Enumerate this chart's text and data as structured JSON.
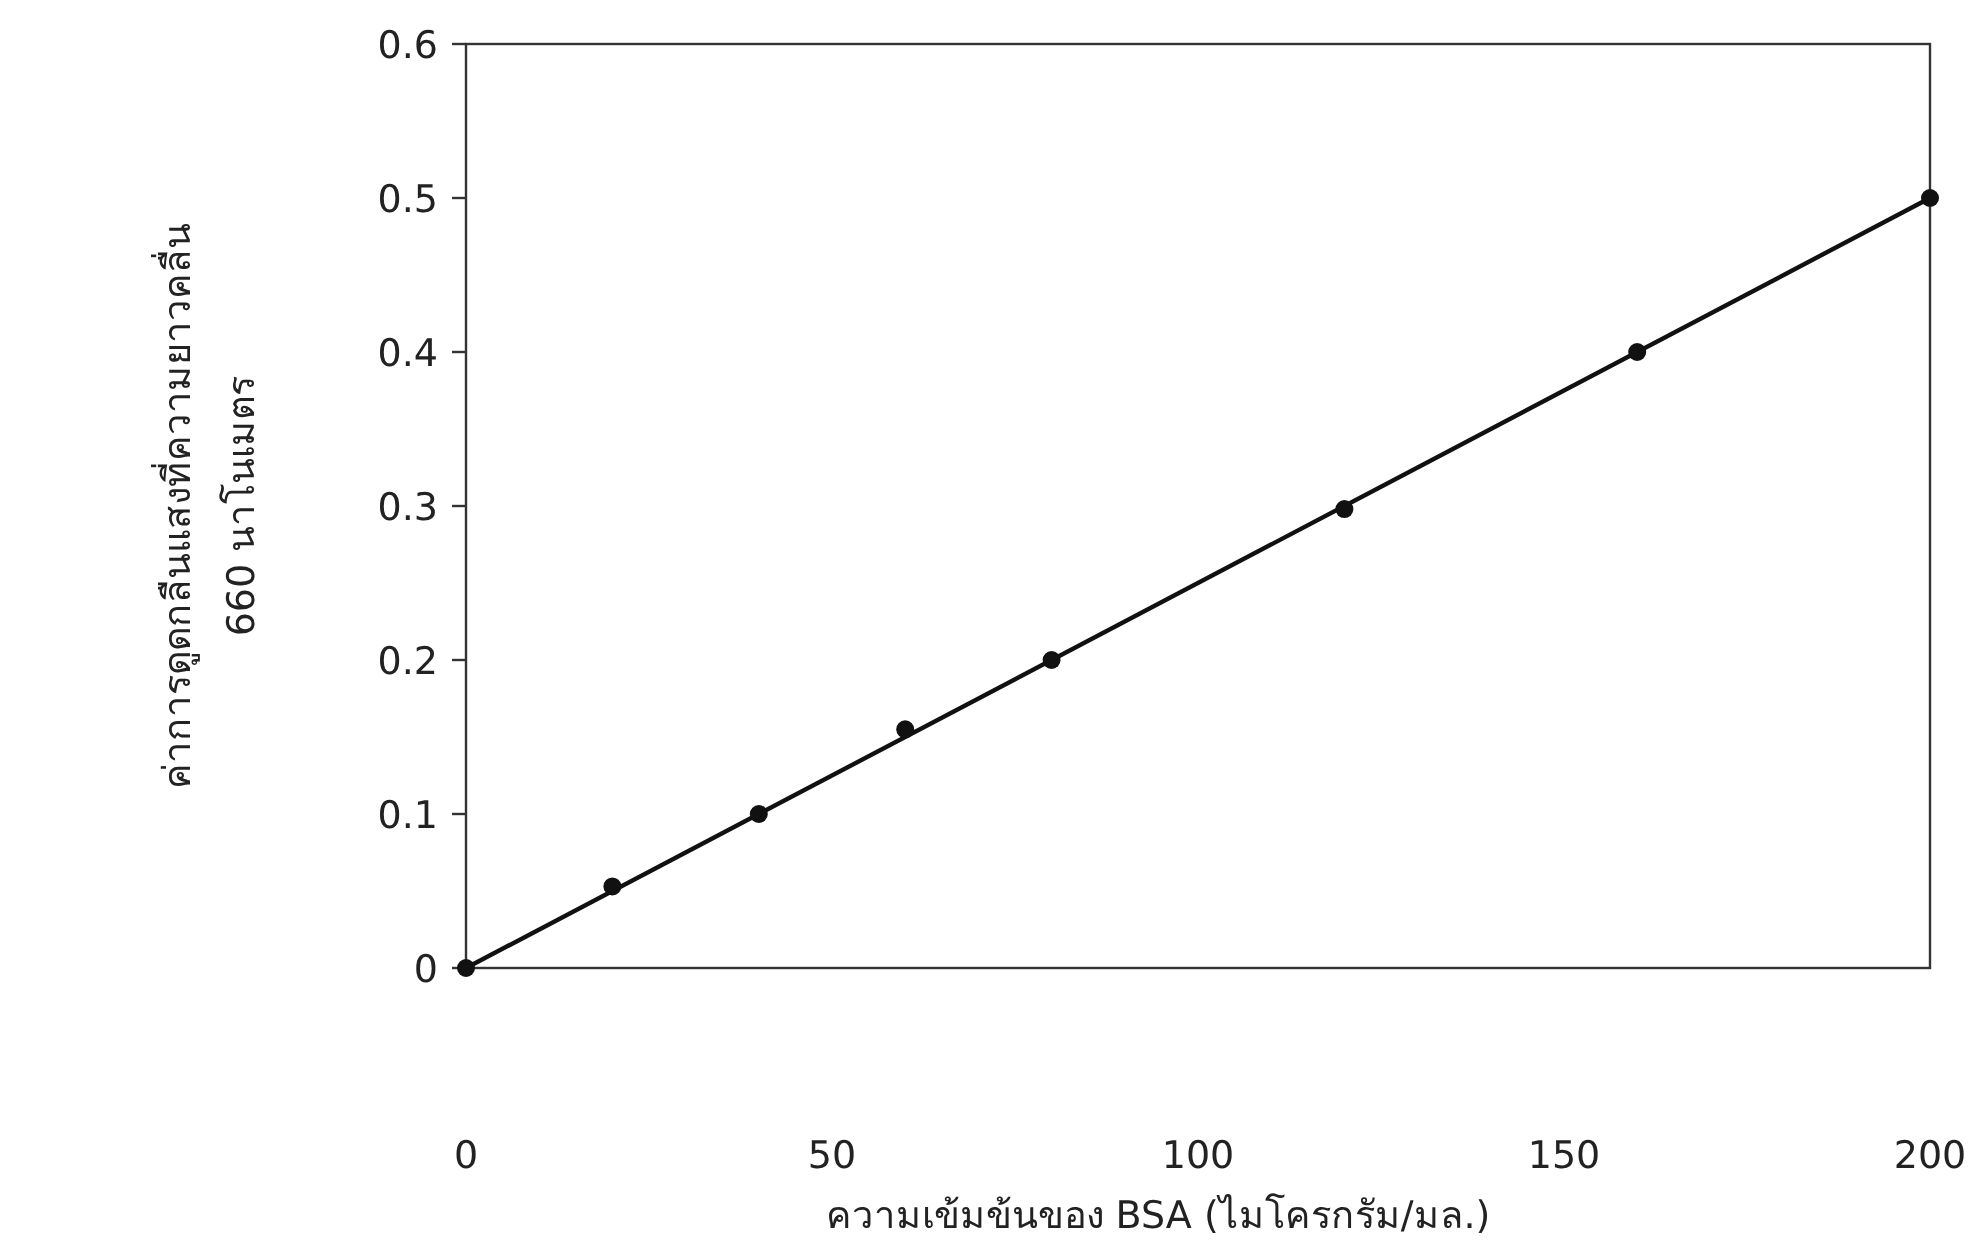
{
  "chart_data": {
    "type": "scatter",
    "xlabel": "ความเข้มข้นของ BSA (ไมโครกรัม/มล.)",
    "ylabel": "ค่าการดูดกลืนแสงที่ความยาวคลื่น\n660 นาโนเมตร",
    "xlim": [
      0,
      200
    ],
    "xticks": [
      0,
      50,
      100,
      150,
      200
    ],
    "ylim": [
      0,
      0.6
    ],
    "yticks": [
      0,
      0.1,
      0.2,
      0.3,
      0.4,
      0.5,
      0.6
    ],
    "marker": "circle",
    "series": [
      {
        "type": "line",
        "color": "#111111",
        "x": [
          0,
          200
        ],
        "values": [
          0,
          0.5
        ],
        "marker": "none"
      },
      {
        "type": "scatter",
        "color": "#111111",
        "x": [
          0,
          20,
          40,
          60,
          80,
          120,
          160,
          200
        ],
        "values": [
          0,
          0.053,
          0.1,
          0.155,
          0.2,
          0.298,
          0.4,
          0.5
        ]
      }
    ]
  }
}
